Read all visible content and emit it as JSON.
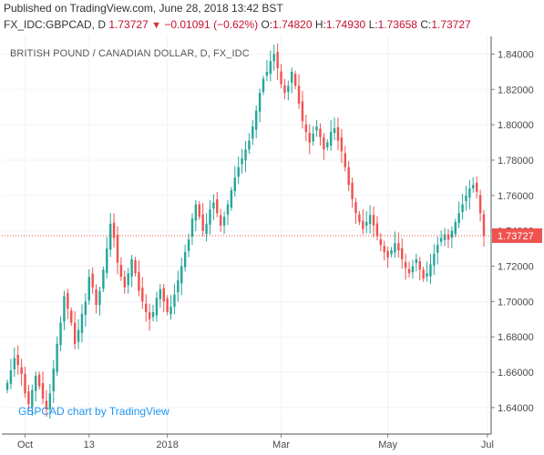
{
  "header": {
    "published": "Published on TradingView.com, June 28, 2018 13:42 BST",
    "symbol": "FX_IDC:GBPCAD, D",
    "last": "1.73727",
    "arrow": "▼",
    "change": "−0.01091 (−0.62%)",
    "open_label": "O:",
    "open": "1.74820",
    "high_label": "H:",
    "high": "1.74930",
    "low_label": "L:",
    "low": "1.73658",
    "close_label": "C:",
    "close": "1.73727"
  },
  "chart_title": "BRITISH POUND / CANADIAN DOLLAR, D, FX_IDC",
  "watermark": "GBPCAD chart by TradingView",
  "colors": {
    "up": "#26a69a",
    "down": "#ef5350",
    "grid": "#f0f3fa",
    "axis_text": "#4a4a4a",
    "price_line": "#ef5350",
    "price_label_bg": "#ef5350"
  },
  "chart_data": {
    "type": "candlestick",
    "title": "BRITISH POUND / CANADIAN DOLLAR, D, FX_IDC",
    "y_axis_position": "right",
    "ylim": [
      1.625,
      1.85
    ],
    "y_ticks": [
      1.64,
      1.66,
      1.68,
      1.7,
      1.72,
      1.74,
      1.76,
      1.78,
      1.8,
      1.82,
      1.84
    ],
    "y_tick_labels": [
      "1.64000",
      "1.66000",
      "1.68000",
      "1.70000",
      "1.72000",
      "1.74000",
      "1.76000",
      "1.78000",
      "1.80000",
      "1.82000",
      "1.84000"
    ],
    "x_ticks": [
      {
        "label": "Oct",
        "index": 5
      },
      {
        "label": "13",
        "index": 23
      },
      {
        "label": "2018",
        "index": 45
      },
      {
        "label": "Mar",
        "index": 77
      },
      {
        "label": "May",
        "index": 107
      },
      {
        "label": "Jul",
        "index": 135
      }
    ],
    "last_price": 1.73727,
    "last_price_label": "1.73727",
    "close": [
      1.654,
      1.661,
      1.668,
      1.664,
      1.659,
      1.648,
      1.642,
      1.65,
      1.658,
      1.652,
      1.645,
      1.639,
      1.648,
      1.662,
      1.676,
      1.688,
      1.703,
      1.696,
      1.688,
      1.676,
      1.684,
      1.693,
      1.7,
      1.714,
      1.708,
      1.698,
      1.706,
      1.718,
      1.73,
      1.744,
      1.736,
      1.722,
      1.714,
      1.708,
      1.716,
      1.724,
      1.716,
      1.706,
      1.7,
      1.694,
      1.69,
      1.694,
      1.702,
      1.707,
      1.7,
      1.694,
      1.697,
      1.704,
      1.712,
      1.72,
      1.728,
      1.735,
      1.747,
      1.755,
      1.748,
      1.74,
      1.744,
      1.752,
      1.756,
      1.75,
      1.743,
      1.748,
      1.755,
      1.763,
      1.77,
      1.776,
      1.781,
      1.786,
      1.791,
      1.799,
      1.808,
      1.818,
      1.826,
      1.83,
      1.836,
      1.84,
      1.832,
      1.823,
      1.818,
      1.822,
      1.83,
      1.822,
      1.812,
      1.802,
      1.796,
      1.79,
      1.795,
      1.799,
      1.793,
      1.786,
      1.79,
      1.796,
      1.798,
      1.791,
      1.785,
      1.776,
      1.766,
      1.758,
      1.75,
      1.745,
      1.741,
      1.745,
      1.749,
      1.743,
      1.737,
      1.732,
      1.728,
      1.725,
      1.729,
      1.733,
      1.729,
      1.724,
      1.719,
      1.716,
      1.72,
      1.724,
      1.718,
      1.713,
      1.716,
      1.721,
      1.727,
      1.732,
      1.736,
      1.738,
      1.735,
      1.74,
      1.745,
      1.75,
      1.755,
      1.76,
      1.764,
      1.766,
      1.762,
      1.75,
      1.737
    ]
  }
}
